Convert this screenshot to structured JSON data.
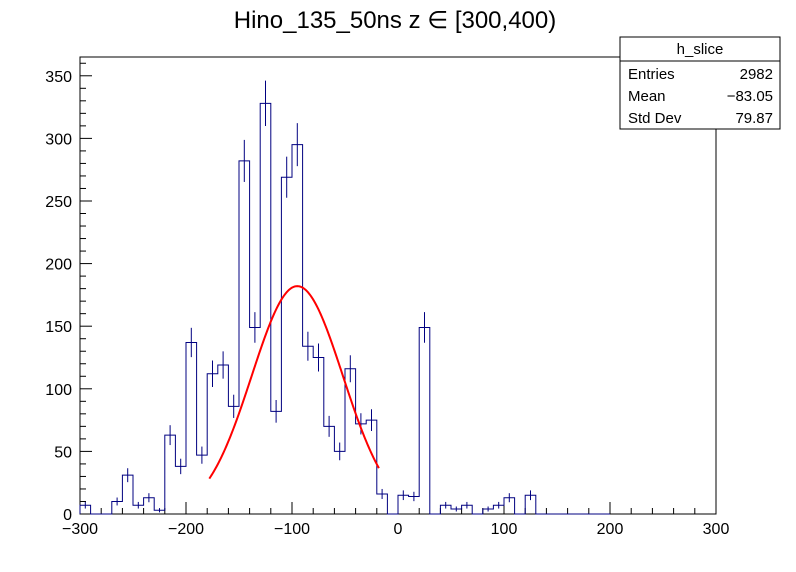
{
  "chart_data": {
    "type": "bar",
    "title": "Hino_135_50ns z  ∈ [300,400)",
    "xlabel": "",
    "ylabel": "",
    "xlim": [
      -300,
      300
    ],
    "ylim": [
      0,
      365
    ],
    "x_ticks": [
      -300,
      -200,
      -100,
      0,
      100,
      200,
      300
    ],
    "y_ticks": [
      0,
      50,
      100,
      150,
      200,
      250,
      300,
      350
    ],
    "bin_width": 10,
    "bins": [
      {
        "x": -300,
        "y": 7
      },
      {
        "x": -290,
        "y": 0
      },
      {
        "x": -280,
        "y": 0
      },
      {
        "x": -270,
        "y": 10
      },
      {
        "x": -260,
        "y": 31
      },
      {
        "x": -250,
        "y": 7
      },
      {
        "x": -240,
        "y": 13
      },
      {
        "x": -230,
        "y": 3
      },
      {
        "x": -220,
        "y": 63
      },
      {
        "x": -210,
        "y": 38
      },
      {
        "x": -200,
        "y": 137
      },
      {
        "x": -190,
        "y": 47
      },
      {
        "x": -180,
        "y": 112
      },
      {
        "x": -170,
        "y": 119
      },
      {
        "x": -160,
        "y": 86
      },
      {
        "x": -150,
        "y": 282
      },
      {
        "x": -140,
        "y": 149
      },
      {
        "x": -130,
        "y": 328
      },
      {
        "x": -120,
        "y": 82
      },
      {
        "x": -110,
        "y": 269
      },
      {
        "x": -100,
        "y": 295
      },
      {
        "x": -90,
        "y": 134
      },
      {
        "x": -80,
        "y": 125
      },
      {
        "x": -70,
        "y": 70
      },
      {
        "x": -60,
        "y": 50
      },
      {
        "x": -50,
        "y": 116
      },
      {
        "x": -40,
        "y": 72
      },
      {
        "x": -30,
        "y": 75
      },
      {
        "x": -20,
        "y": 16
      },
      {
        "x": -10,
        "y": 0
      },
      {
        "x": 0,
        "y": 15
      },
      {
        "x": 10,
        "y": 14
      },
      {
        "x": 20,
        "y": 149
      },
      {
        "x": 30,
        "y": 0
      },
      {
        "x": 40,
        "y": 7
      },
      {
        "x": 50,
        "y": 4
      },
      {
        "x": 60,
        "y": 7
      },
      {
        "x": 70,
        "y": 0
      },
      {
        "x": 80,
        "y": 4
      },
      {
        "x": 90,
        "y": 7
      },
      {
        "x": 100,
        "y": 13
      },
      {
        "x": 110,
        "y": 0
      },
      {
        "x": 120,
        "y": 15
      },
      {
        "x": 130,
        "y": 0
      },
      {
        "x": 140,
        "y": 0
      },
      {
        "x": 150,
        "y": 0
      },
      {
        "x": 160,
        "y": 0
      },
      {
        "x": 170,
        "y": 0
      },
      {
        "x": 180,
        "y": 0
      },
      {
        "x": 190,
        "y": 0
      }
    ],
    "fit": {
      "type": "gaussian",
      "constant": 182,
      "mean": -95,
      "sigma": 43,
      "range": [
        -178,
        -18
      ]
    },
    "stats": {
      "name": "h_slice",
      "rows": [
        {
          "label": "Entries",
          "value": "2982"
        },
        {
          "label": "Mean",
          "value": "−83.05"
        },
        {
          "label": "Std Dev",
          "value": "79.87"
        }
      ]
    },
    "grid": false,
    "legend": "top-right",
    "colors": {
      "histogram": "#000080",
      "fit": "#ff0000",
      "axis": "#000000",
      "frame": "#000000"
    }
  }
}
